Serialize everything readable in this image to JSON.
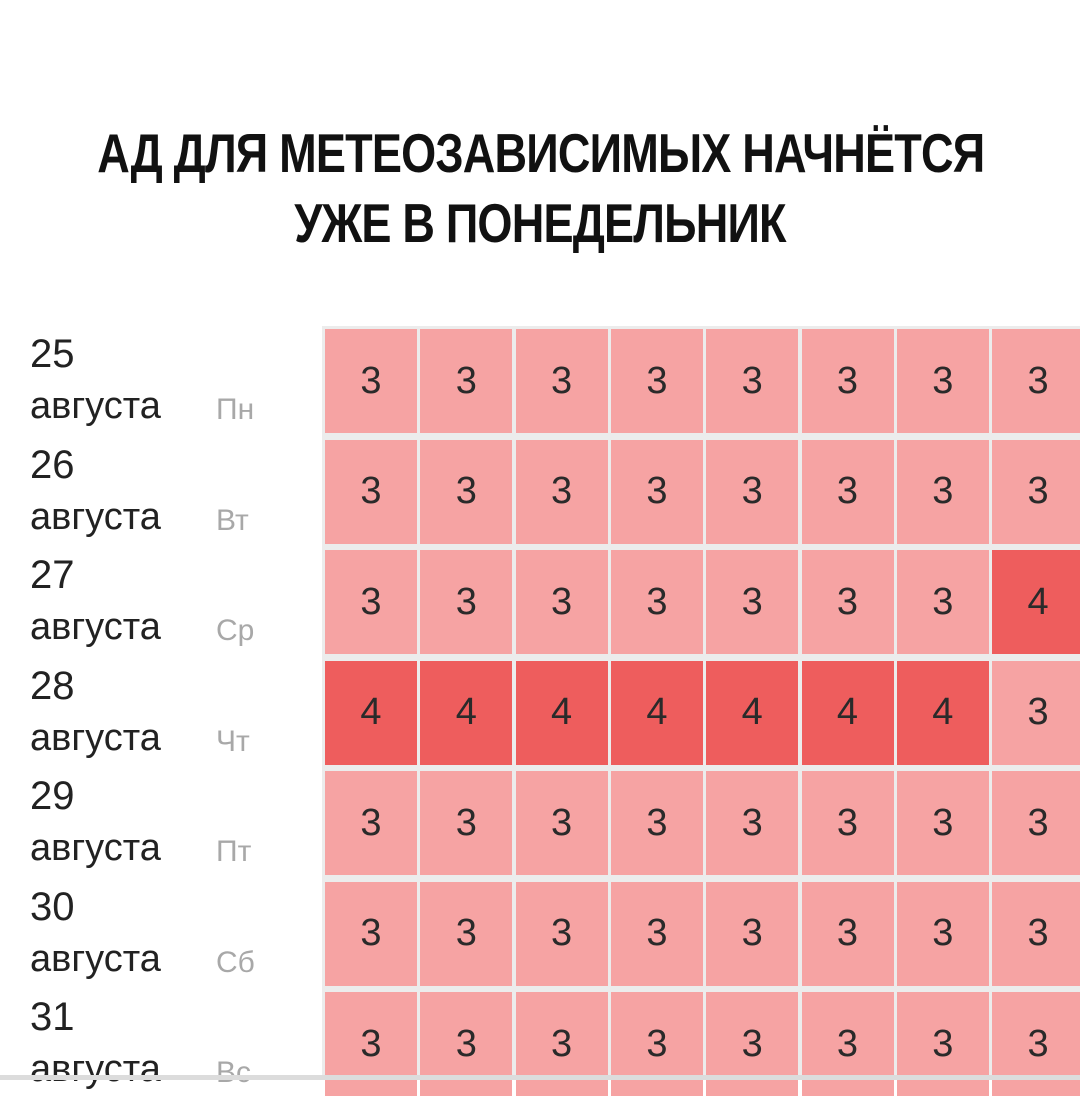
{
  "headline": {
    "line1": "АД ДЛЯ МЕТЕОЗАВИСИМЫХ НАЧНЁТСЯ",
    "line2": "УЖЕ В ПОНЕДЕЛЬНИК"
  },
  "colors": {
    "level3": "#f6a3a3",
    "level4": "#ee5d5d"
  },
  "days": [
    {
      "day": "25",
      "month": "августа",
      "weekday": "Пн",
      "values": [
        "3",
        "3",
        "3",
        "3",
        "3",
        "3",
        "3",
        "3"
      ]
    },
    {
      "day": "26",
      "month": "августа",
      "weekday": "Вт",
      "values": [
        "3",
        "3",
        "3",
        "3",
        "3",
        "3",
        "3",
        "3"
      ]
    },
    {
      "day": "27",
      "month": "августа",
      "weekday": "Ср",
      "values": [
        "3",
        "3",
        "3",
        "3",
        "3",
        "3",
        "3",
        "4"
      ]
    },
    {
      "day": "28",
      "month": "августа",
      "weekday": "Чт",
      "values": [
        "4",
        "4",
        "4",
        "4",
        "4",
        "4",
        "4",
        "3"
      ]
    },
    {
      "day": "29",
      "month": "августа",
      "weekday": "Пт",
      "values": [
        "3",
        "3",
        "3",
        "3",
        "3",
        "3",
        "3",
        "3"
      ]
    },
    {
      "day": "30",
      "month": "августа",
      "weekday": "Сб",
      "values": [
        "3",
        "3",
        "3",
        "3",
        "3",
        "3",
        "3",
        "3"
      ]
    },
    {
      "day": "31",
      "month": "августа",
      "weekday": "Вс",
      "values": [
        "3",
        "3",
        "3",
        "3",
        "3",
        "3",
        "3",
        "3"
      ]
    }
  ]
}
